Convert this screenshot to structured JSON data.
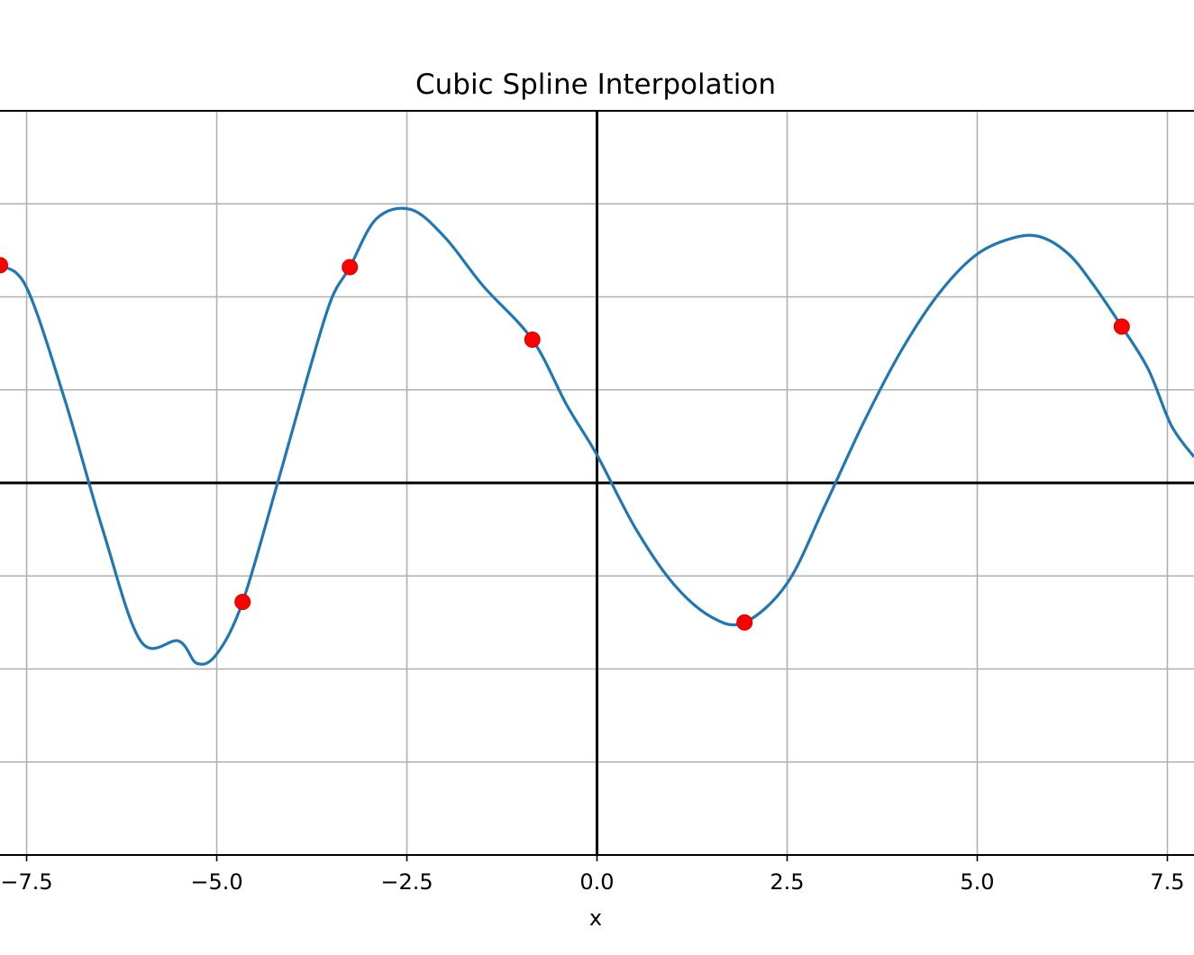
{
  "chart_data": {
    "type": "line",
    "title": "Cubic Spline Interpolation",
    "xlabel": "x",
    "ylabel": "",
    "xlim": [
      -7.85,
      7.85
    ],
    "ylim": [
      -2.0,
      2.0
    ],
    "x_ticks": [
      -7.5,
      -5.0,
      -2.5,
      0.0,
      2.5,
      5.0,
      7.5
    ],
    "x_tick_labels": [
      "−7.5",
      "−5.0",
      "−2.5",
      "0.0",
      "2.5",
      "5.0",
      "7.5"
    ],
    "y_gridlines": [
      -1.5,
      -1.0,
      -0.5,
      0.0,
      0.5,
      1.0,
      1.5
    ],
    "grid": true,
    "colors": {
      "curve": "#1f77b4",
      "points": "#ff0000",
      "grid": "#b0b0b0",
      "axes": "#000000"
    },
    "series": [
      {
        "kind": "spline",
        "x": [
          -7.85,
          -7.5,
          -7.0,
          -6.5,
          -6.0,
          -5.5,
          -5.26,
          -5.0,
          -4.66,
          -4.2,
          -3.8,
          -3.5,
          -3.25,
          -2.9,
          -2.45,
          -2.0,
          -1.5,
          -0.85,
          -0.4,
          0.0,
          0.5,
          1.0,
          1.5,
          1.94,
          2.5,
          3.0,
          3.5,
          4.0,
          4.5,
          5.0,
          5.5,
          5.85,
          6.2,
          6.5,
          6.9,
          7.25,
          7.55,
          7.85
        ],
        "y": [
          1.17,
          1.05,
          0.45,
          -0.25,
          -0.85,
          -0.85,
          -0.97,
          -0.92,
          -0.64,
          0.0,
          0.58,
          0.98,
          1.16,
          1.42,
          1.47,
          1.32,
          1.06,
          0.77,
          0.42,
          0.15,
          -0.24,
          -0.54,
          -0.72,
          -0.75,
          -0.54,
          -0.12,
          0.32,
          0.71,
          1.02,
          1.23,
          1.32,
          1.32,
          1.23,
          1.08,
          0.84,
          0.61,
          0.31,
          0.14
        ]
      },
      {
        "kind": "points",
        "x": [
          -7.85,
          -4.66,
          -3.25,
          -0.85,
          1.94,
          6.9
        ],
        "y": [
          1.17,
          -0.64,
          1.16,
          0.77,
          -0.75,
          0.84
        ]
      }
    ]
  }
}
